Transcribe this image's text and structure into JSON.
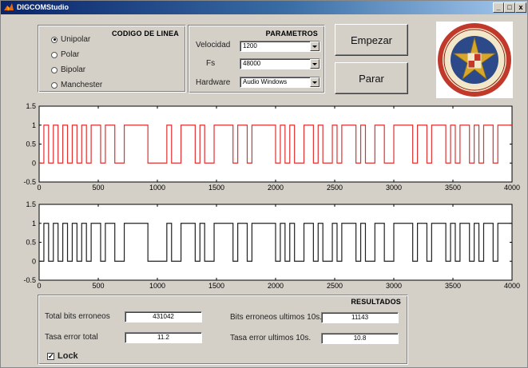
{
  "window": {
    "title": "DIGCOMStudio",
    "controls": [
      "_",
      "□",
      "x"
    ]
  },
  "linea": {
    "title": "CODIGO DE LINEA",
    "options": [
      "Unipolar",
      "Polar",
      "Bipolar",
      "Manchester"
    ],
    "selected": "Unipolar"
  },
  "parametros": {
    "title": "PARAMETROS",
    "velocidad_label": "Velocidad",
    "velocidad_value": "1200",
    "fs_label": "Fs",
    "fs_value": "48000",
    "hardware_label": "Hardware",
    "hardware_value": "Audio Windows"
  },
  "buttons": {
    "start": "Empezar",
    "stop": "Parar"
  },
  "plots": {
    "yticks": [
      "1.5",
      "1",
      "0.5",
      "0",
      "-0.5"
    ],
    "xticks": [
      "0",
      "500",
      "1000",
      "1500",
      "2000",
      "2500",
      "3000",
      "3500",
      "4000"
    ],
    "colors": {
      "top": "#e03030",
      "bottom": "#202020",
      "axis": "#000000"
    }
  },
  "chart_data": [
    {
      "type": "line",
      "xlim": [
        0,
        4000
      ],
      "ylim": [
        -0.5,
        1.5
      ],
      "series": [
        {
          "values": [
            0,
            1,
            0,
            1,
            0,
            1,
            0,
            1,
            0,
            1,
            0,
            1,
            1,
            0,
            1,
            1,
            0,
            0,
            1,
            1,
            1,
            1,
            1,
            0,
            0,
            0,
            0,
            1,
            0,
            0,
            1,
            1,
            1,
            0,
            1,
            0,
            0,
            1,
            1,
            1,
            1,
            0,
            1,
            1,
            0,
            1,
            1,
            1,
            1,
            1,
            0,
            1,
            0,
            1,
            0,
            0,
            1,
            1,
            0,
            1,
            0,
            0,
            1,
            0,
            1,
            1,
            1,
            0,
            1,
            0,
            0,
            1,
            1,
            0,
            0,
            1,
            1,
            1,
            1,
            0,
            1,
            1,
            0,
            1,
            1,
            1,
            0,
            1,
            0,
            1,
            1,
            0,
            1,
            0,
            1,
            1,
            0,
            1,
            1,
            1
          ]
        }
      ]
    },
    {
      "type": "line",
      "xlim": [
        0,
        4000
      ],
      "ylim": [
        -0.5,
        1.5
      ],
      "series": [
        {
          "values": [
            0,
            1,
            0,
            1,
            0,
            1,
            0,
            1,
            0,
            1,
            0,
            1,
            1,
            0,
            1,
            1,
            0,
            0,
            1,
            1,
            1,
            1,
            1,
            0,
            0,
            0,
            0,
            1,
            0,
            0,
            1,
            1,
            1,
            0,
            1,
            0,
            0,
            1,
            1,
            1,
            1,
            0,
            1,
            1,
            0,
            1,
            1,
            1,
            1,
            1,
            0,
            1,
            0,
            1,
            0,
            0,
            1,
            1,
            0,
            1,
            0,
            0,
            1,
            0,
            1,
            1,
            1,
            0,
            1,
            0,
            0,
            1,
            1,
            0,
            0,
            1,
            1,
            1,
            1,
            0,
            1,
            1,
            0,
            1,
            1,
            1,
            0,
            1,
            0,
            1,
            1,
            0,
            1,
            0,
            1,
            1,
            0,
            1,
            1,
            1
          ]
        }
      ]
    }
  ],
  "resultados": {
    "title": "RESULTADOS",
    "total_bits_label": "Total bits erroneos",
    "total_bits_value": "431042",
    "tasa_total_label": "Tasa error total",
    "tasa_total_value": "11.2",
    "bits_10s_label": "Bits erroneos ultimos 10s.",
    "bits_10s_value": "11143",
    "tasa_10s_label": "Tasa error ultimos 10s.",
    "tasa_10s_value": "10.8",
    "lock_label": "Lock",
    "lock_checked": true
  }
}
